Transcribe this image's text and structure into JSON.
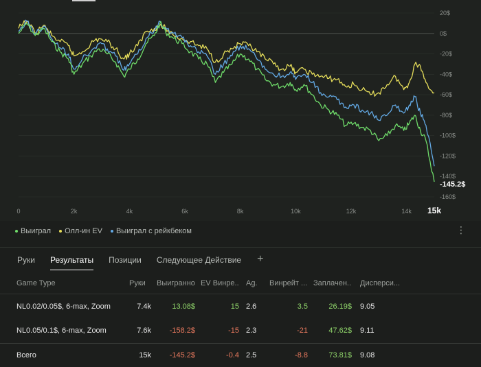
{
  "chart": {
    "colors": {
      "won": "#6fdc6a",
      "allin_ev": "#e4dc5a",
      "rakeback": "#63a9e4",
      "grid": "#2e322e",
      "zero_line": "#4a4e4a"
    },
    "y_ticks": [
      "20$",
      "0$",
      "-20$",
      "-40$",
      "-60$",
      "-80$",
      "-100$",
      "-120$",
      "-140$",
      "-160$"
    ],
    "x_ticks": [
      "0",
      "2k",
      "4k",
      "6k",
      "8k",
      "10k",
      "12k",
      "14k"
    ],
    "x_current": "15k",
    "end_value_label": "-145.2$"
  },
  "chart_data": {
    "type": "line",
    "xlabel": "",
    "ylabel": "",
    "xlim": [
      0,
      15000
    ],
    "ylim": [
      -160,
      20
    ],
    "grid": true,
    "legend": "bottom-left",
    "series": [
      {
        "name": "Выиграл",
        "color": "#6fdc6a",
        "x": [
          0,
          300,
          600,
          900,
          1200,
          1500,
          1800,
          2000,
          2300,
          2600,
          2900,
          3200,
          3500,
          3800,
          4000,
          4300,
          4600,
          4900,
          5100,
          5300,
          5600,
          5900,
          6200,
          6500,
          6800,
          7100,
          7400,
          7700,
          8000,
          8300,
          8600,
          8900,
          9200,
          9500,
          9800,
          10000,
          10300,
          10600,
          10900,
          11200,
          11500,
          11800,
          12100,
          12400,
          12700,
          13000,
          13300,
          13600,
          13900,
          14100,
          14300,
          14500,
          14700,
          15000
        ],
        "y": [
          0,
          10,
          -2,
          5,
          -8,
          -18,
          -25,
          -40,
          -30,
          -22,
          -15,
          -20,
          -28,
          -42,
          -35,
          -25,
          -10,
          -2,
          10,
          2,
          -5,
          -10,
          -18,
          -25,
          -30,
          -48,
          -38,
          -30,
          -20,
          -25,
          -35,
          -45,
          -50,
          -52,
          -48,
          -55,
          -50,
          -60,
          -70,
          -75,
          -80,
          -90,
          -88,
          -92,
          -95,
          -105,
          -100,
          -90,
          -95,
          -88,
          -80,
          -95,
          -105,
          -145.2
        ]
      },
      {
        "name": "Олл-ин EV",
        "color": "#e4dc5a",
        "x": [
          0,
          300,
          600,
          900,
          1200,
          1500,
          1800,
          2000,
          2300,
          2600,
          2900,
          3200,
          3500,
          3800,
          4000,
          4300,
          4600,
          4900,
          5100,
          5300,
          5600,
          5900,
          6200,
          6500,
          6800,
          7100,
          7400,
          7700,
          8000,
          8300,
          8600,
          8900,
          9200,
          9500,
          9800,
          10000,
          10300,
          10600,
          10900,
          11200,
          11500,
          11800,
          12100,
          12400,
          12700,
          13000,
          13300,
          13600,
          13900,
          14100,
          14300,
          14500,
          14700,
          15000
        ],
        "y": [
          5,
          12,
          0,
          8,
          -2,
          -8,
          -12,
          -22,
          -18,
          -10,
          -5,
          -8,
          -15,
          -25,
          -20,
          -12,
          2,
          5,
          8,
          5,
          -2,
          -5,
          -8,
          -12,
          -15,
          -28,
          -20,
          -15,
          -10,
          -12,
          -18,
          -25,
          -30,
          -35,
          -32,
          -38,
          -35,
          -40,
          -42,
          -44,
          -45,
          -52,
          -50,
          -55,
          -60,
          -58,
          -50,
          -42,
          -55,
          -48,
          -30,
          -32,
          -48,
          -58
        ]
      },
      {
        "name": "Выиграл с рейкбеком",
        "color": "#63a9e4",
        "x": [
          0,
          300,
          600,
          900,
          1200,
          1500,
          1800,
          2000,
          2300,
          2600,
          2900,
          3200,
          3500,
          3800,
          4000,
          4300,
          4600,
          4900,
          5100,
          5300,
          5600,
          5900,
          6200,
          6500,
          6800,
          7100,
          7400,
          7700,
          8000,
          8300,
          8600,
          8900,
          9200,
          9500,
          9800,
          10000,
          10300,
          10600,
          10900,
          11200,
          11500,
          11800,
          12100,
          12400,
          12700,
          13000,
          13300,
          13600,
          13900,
          14100,
          14300,
          14500,
          14700,
          15000
        ],
        "y": [
          2,
          12,
          0,
          7,
          -5,
          -14,
          -20,
          -35,
          -25,
          -18,
          -10,
          -15,
          -22,
          -36,
          -30,
          -20,
          -5,
          3,
          12,
          6,
          0,
          -4,
          -12,
          -18,
          -22,
          -40,
          -30,
          -22,
          -12,
          -15,
          -25,
          -35,
          -40,
          -42,
          -38,
          -45,
          -40,
          -48,
          -58,
          -62,
          -65,
          -72,
          -70,
          -75,
          -78,
          -85,
          -80,
          -70,
          -78,
          -70,
          -62,
          -78,
          -90,
          -130
        ]
      }
    ]
  },
  "legend": [
    {
      "label": "Выиграл",
      "color": "#6fdc6a"
    },
    {
      "label": "Олл-ин EV",
      "color": "#e4dc5a"
    },
    {
      "label": "Выиграл с рейкбеком",
      "color": "#63a9e4"
    }
  ],
  "more_icon": "⋮",
  "tabs": [
    {
      "label": "Руки"
    },
    {
      "label": "Результаты"
    },
    {
      "label": "Позиции"
    },
    {
      "label": "Следующее Действие"
    }
  ],
  "tab_add_icon": "+",
  "table": {
    "headers": [
      "Game Type",
      "Руки",
      "Выигранно",
      "EV Винре...",
      "Ag.",
      "Винрейт ...",
      "Заплачен...",
      "Дисперси..."
    ],
    "rows": [
      {
        "game_type": "NL0.02/0.05$, 6-max, Zoom",
        "hands": "7.4k",
        "won": "13.08$",
        "ev_winrate": "15",
        "ag": "2.6",
        "winrate": "3.5",
        "paid": "26.19$",
        "variance": "9.05"
      },
      {
        "game_type": "NL0.05/0.1$, 6-max, Zoom",
        "hands": "7.6k",
        "won": "-158.2$",
        "ev_winrate": "-15",
        "ag": "2.3",
        "winrate": "-21",
        "paid": "47.62$",
        "variance": "9.11"
      }
    ],
    "total": {
      "game_type": "Всего",
      "hands": "15k",
      "won": "-145.2$",
      "ev_winrate": "-0.4",
      "ag": "2.5",
      "winrate": "-8.8",
      "paid": "73.81$",
      "variance": "9.08"
    }
  }
}
